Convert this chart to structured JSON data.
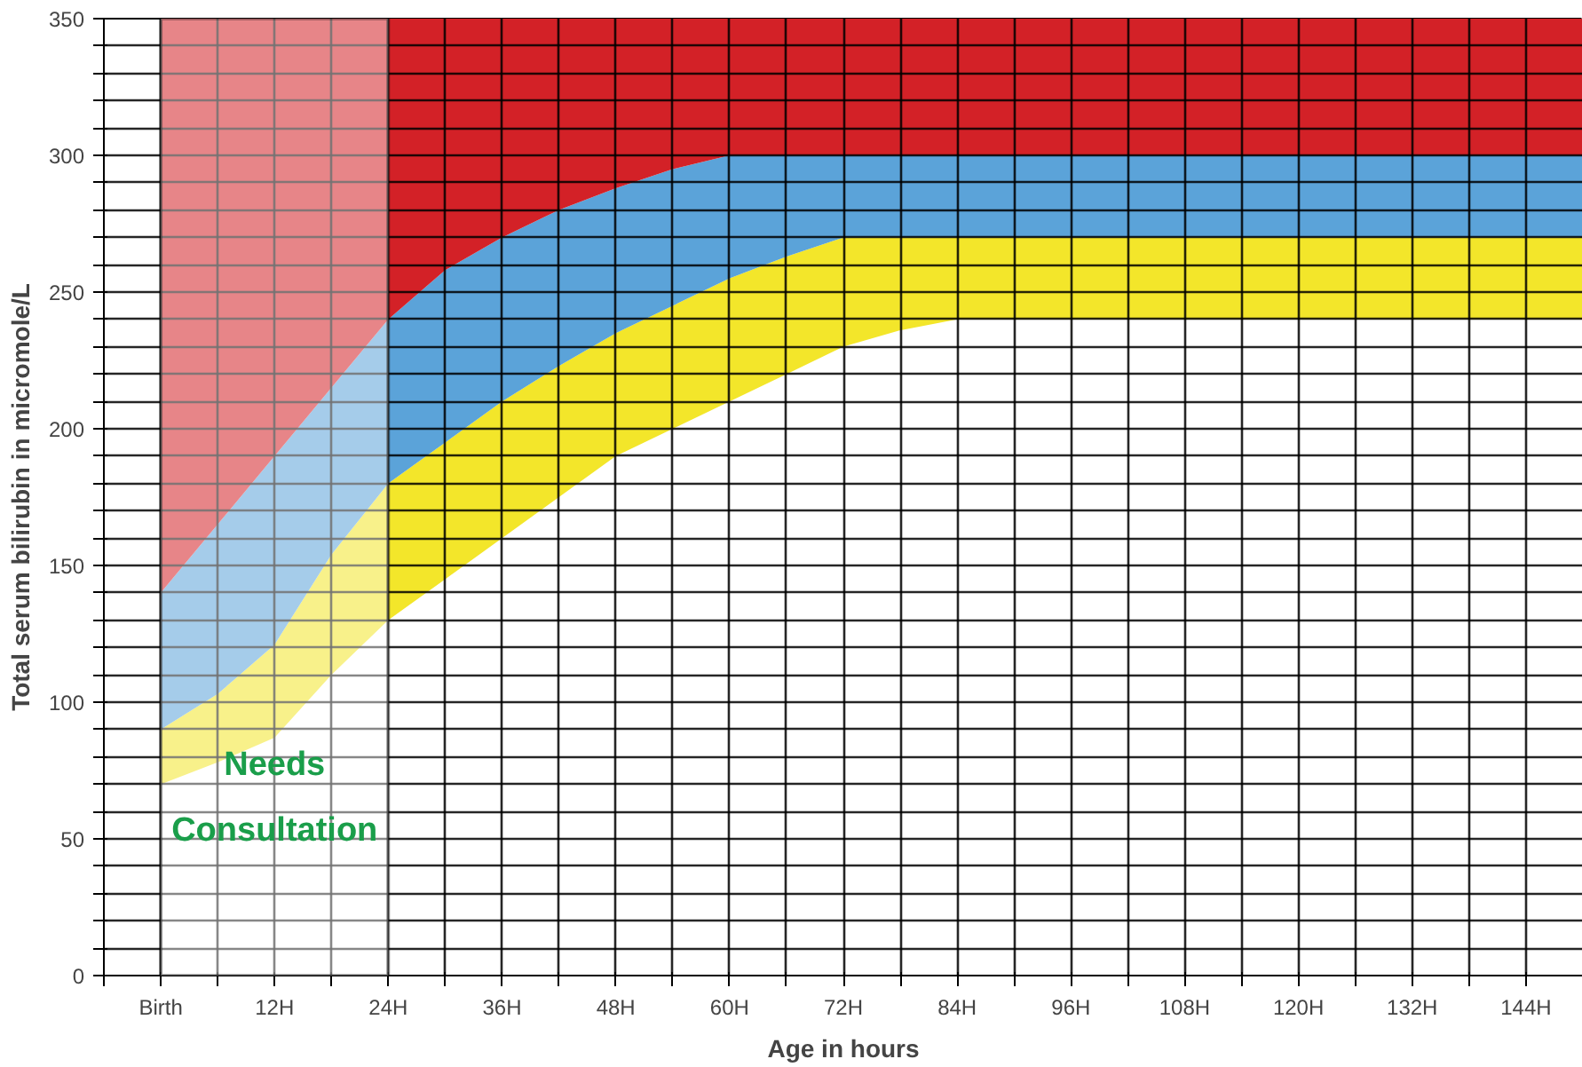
{
  "chart_data": {
    "type": "area",
    "stacked": true,
    "xlabel": "Age in hours",
    "ylabel": "Total serum bilirubin in micromole/L",
    "x": [
      0,
      6,
      12,
      18,
      24,
      30,
      36,
      42,
      48,
      54,
      60,
      66,
      72,
      78,
      84,
      150
    ],
    "series": [
      {
        "color": "#ffffff",
        "values": [
          70,
          78,
          87,
          110,
          130,
          145,
          160,
          175,
          190,
          200,
          210,
          220,
          230,
          236,
          240,
          240
        ]
      },
      {
        "color": "#f3e62a",
        "values": [
          20,
          25,
          34,
          44,
          50,
          50,
          50,
          48,
          45,
          45,
          45,
          43,
          40,
          34,
          30,
          30
        ]
      },
      {
        "color": "#5ba3d9",
        "values": [
          50,
          62,
          69,
          61,
          60,
          63,
          60,
          57,
          53,
          50,
          45,
          37,
          30,
          30,
          30,
          30
        ]
      },
      {
        "color": "#d32127",
        "values": [
          210,
          185,
          160,
          135,
          110,
          92,
          80,
          70,
          62,
          55,
          50,
          50,
          50,
          50,
          50,
          50
        ]
      }
    ],
    "bands": [
      {
        "axis": "x",
        "from": 0,
        "to": 24,
        "label": "Needs Consultation",
        "color": "#ffffff"
      }
    ],
    "xlim": [
      -6,
      150
    ],
    "ylim": [
      0,
      350
    ],
    "xticks": [
      {
        "value": -6,
        "label": null
      },
      {
        "value": 0,
        "label": "Birth"
      },
      {
        "value": 6,
        "label": null
      },
      {
        "value": 12,
        "label": "12H"
      },
      {
        "value": 18,
        "label": null
      },
      {
        "value": 24,
        "label": "24H"
      },
      {
        "value": 30,
        "label": null
      },
      {
        "value": 36,
        "label": "36H"
      },
      {
        "value": 42,
        "label": null
      },
      {
        "value": 48,
        "label": "48H"
      },
      {
        "value": 54,
        "label": null
      },
      {
        "value": 60,
        "label": "60H"
      },
      {
        "value": 66,
        "label": null
      },
      {
        "value": 72,
        "label": "72H"
      },
      {
        "value": 78,
        "label": null
      },
      {
        "value": 84,
        "label": "84H"
      },
      {
        "value": 90,
        "label": null
      },
      {
        "value": 96,
        "label": "96H"
      },
      {
        "value": 102,
        "label": null
      },
      {
        "value": 108,
        "label": "108H"
      },
      {
        "value": 114,
        "label": null
      },
      {
        "value": 120,
        "label": "120H"
      },
      {
        "value": 126,
        "label": null
      },
      {
        "value": 132,
        "label": "132H"
      },
      {
        "value": 138,
        "label": null
      },
      {
        "value": 144,
        "label": "144H"
      }
    ],
    "yticks": [
      0,
      {
        "value": 10,
        "label": null
      },
      {
        "value": 20,
        "label": null
      },
      {
        "value": 30,
        "label": null
      },
      {
        "value": 40,
        "label": null
      },
      50,
      {
        "value": 60,
        "label": null
      },
      {
        "value": 70,
        "label": null
      },
      {
        "value": 80,
        "label": null
      },
      {
        "value": 90,
        "label": null
      },
      100,
      {
        "value": 110,
        "label": null
      },
      {
        "value": 120,
        "label": null
      },
      {
        "value": 130,
        "label": null
      },
      {
        "value": 140,
        "label": null
      },
      150,
      {
        "value": 160,
        "label": null
      },
      {
        "value": 170,
        "label": null
      },
      {
        "value": 180,
        "label": null
      },
      {
        "value": 190,
        "label": null
      },
      200,
      {
        "value": 210,
        "label": null
      },
      {
        "value": 220,
        "label": null
      },
      {
        "value": 230,
        "label": null
      },
      {
        "value": 240,
        "label": null
      },
      250,
      {
        "value": 260,
        "label": null
      },
      {
        "value": 270,
        "label": null
      },
      {
        "value": 280,
        "label": null
      },
      {
        "value": 290,
        "label": null
      },
      300,
      {
        "value": 310,
        "label": null
      },
      {
        "value": 320,
        "label": null
      },
      {
        "value": 330,
        "label": null
      },
      {
        "value": 340,
        "label": null
      },
      350
    ],
    "grid": true
  }
}
